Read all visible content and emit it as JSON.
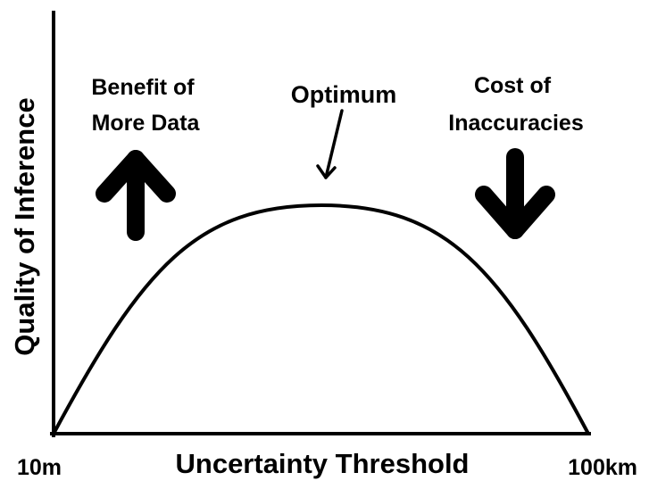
{
  "axes": {
    "y_label": "Quality of Inference",
    "x_label": "Uncertainty Threshold",
    "x_min_label": "10m",
    "x_max_label": "100km"
  },
  "annotations": {
    "benefit_line1": "Benefit of",
    "benefit_line2": "More Data",
    "optimum": "Optimum",
    "cost_line1": "Cost of",
    "cost_line2": "Inaccuracies"
  },
  "colors": {
    "ink": "#000000",
    "background": "#ffffff"
  },
  "icons": {
    "benefit": "arrow-up-icon",
    "cost": "arrow-down-icon",
    "optimum_pointer": "pointer-arrow-icon"
  }
}
